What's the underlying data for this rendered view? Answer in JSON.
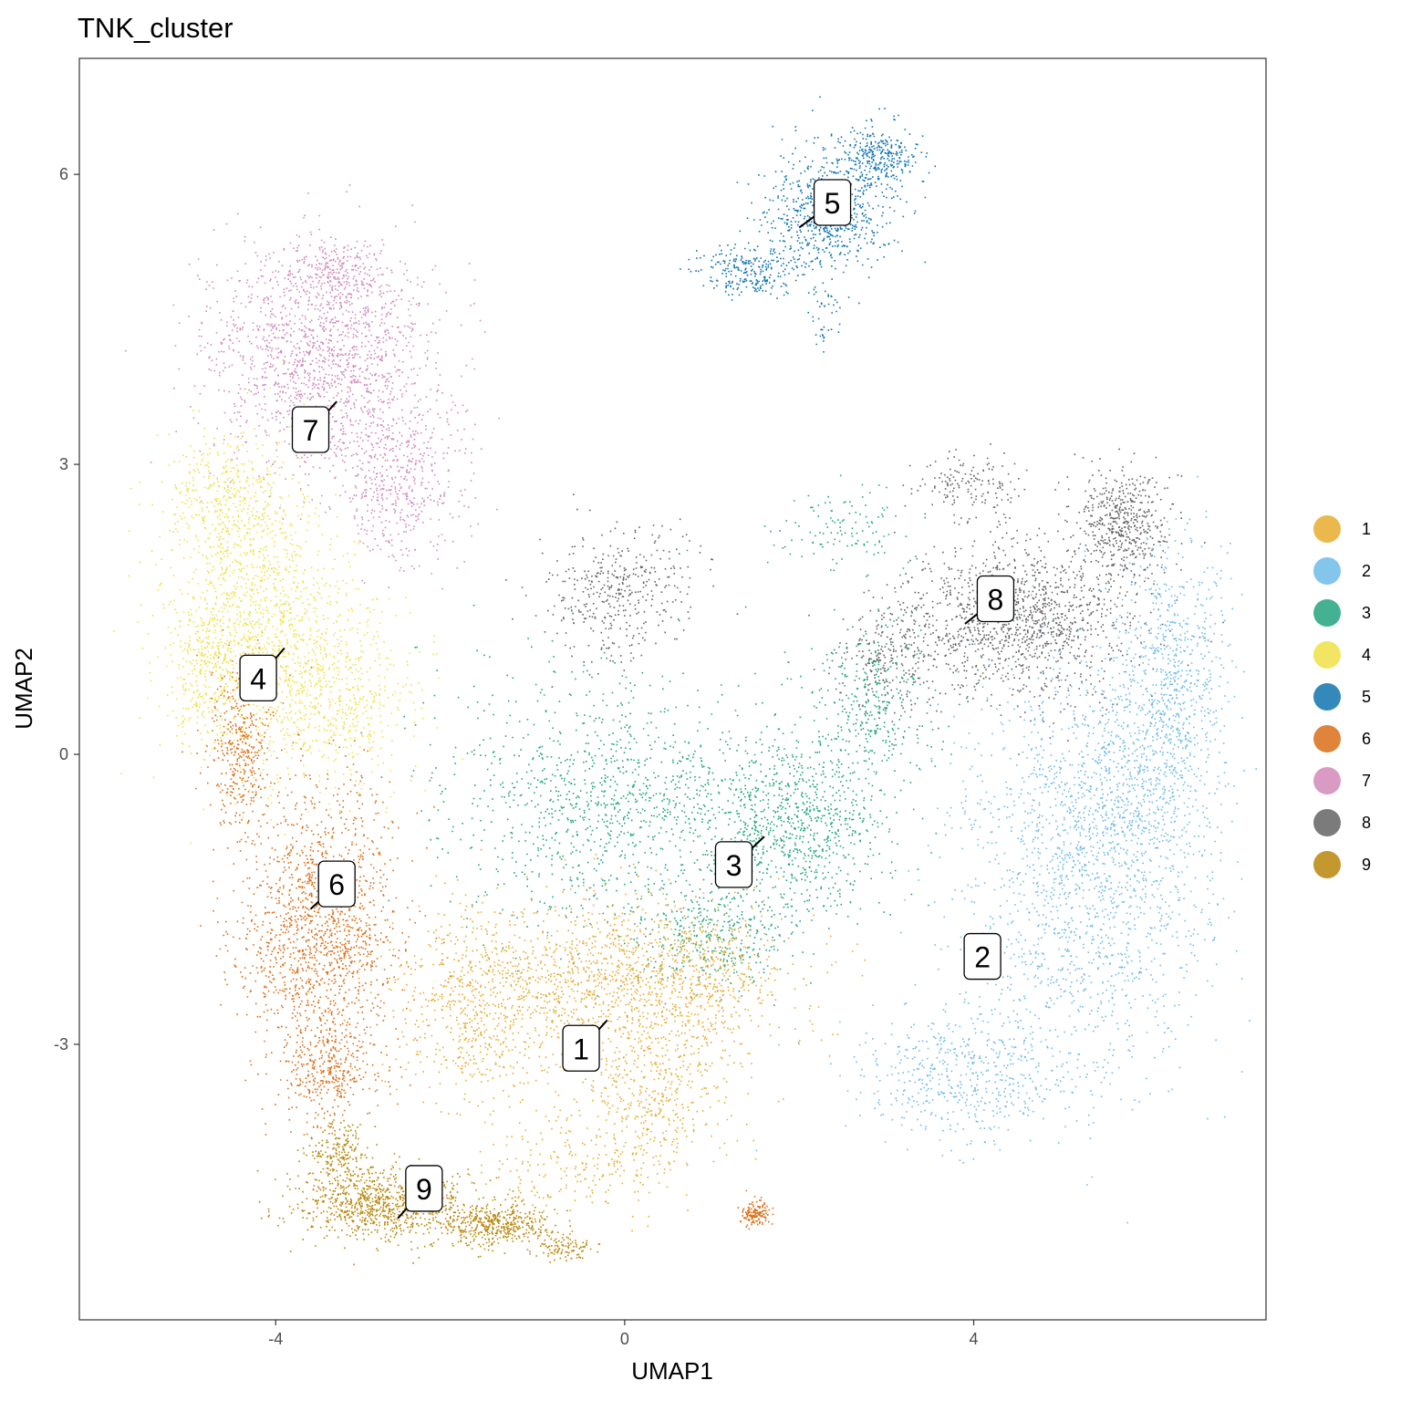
{
  "chart_data": {
    "type": "scatter",
    "title": "TNK_cluster",
    "xlabel": "UMAP1",
    "ylabel": "UMAP2",
    "xlim": [
      -6.25,
      7.35
    ],
    "ylim": [
      -5.85,
      7.2
    ],
    "xticks": [
      -4,
      0,
      4
    ],
    "yticks": [
      -3,
      0,
      3,
      6
    ],
    "grid": false,
    "legend_position": "right",
    "series": [
      {
        "name": "1",
        "color": "#E7AB2E",
        "label_point": [
          -0.5,
          -3.05
        ],
        "label_anchor": [
          -0.2,
          -2.75
        ],
        "blobs": [
          [
            -0.5,
            -2.4,
            1.9,
            0.85,
            1300
          ],
          [
            0.7,
            -2.3,
            1.0,
            0.7,
            500
          ],
          [
            0.3,
            -3.6,
            0.8,
            0.6,
            350
          ],
          [
            -1.7,
            -2.7,
            0.8,
            0.9,
            350
          ],
          [
            -0.6,
            -4.3,
            1.0,
            0.4,
            200
          ]
        ]
      },
      {
        "name": "2",
        "color": "#6FBBE8",
        "label_point": [
          4.1,
          -2.1
        ],
        "label_anchor": [
          4.1,
          -2.1
        ],
        "blobs": [
          [
            5.3,
            -1.2,
            1.3,
            1.9,
            1600
          ],
          [
            6.3,
            0.8,
            0.55,
            1.3,
            650
          ],
          [
            3.9,
            -3.3,
            1.2,
            0.6,
            550
          ],
          [
            5.8,
            -0.2,
            0.9,
            1.0,
            500
          ]
        ]
      },
      {
        "name": "3",
        "color": "#23A57F",
        "label_point": [
          1.25,
          -1.15
        ],
        "label_anchor": [
          1.6,
          -0.85
        ],
        "blobs": [
          [
            -0.2,
            -0.5,
            1.7,
            1.2,
            1100
          ],
          [
            1.9,
            -0.7,
            1.0,
            0.8,
            900
          ],
          [
            2.8,
            0.5,
            0.7,
            0.8,
            350
          ],
          [
            1.0,
            -1.9,
            0.8,
            0.5,
            350
          ],
          [
            2.5,
            2.3,
            0.7,
            0.4,
            120
          ]
        ]
      },
      {
        "name": "4",
        "color": "#F0E049",
        "label_point": [
          -4.2,
          0.78
        ],
        "label_anchor": [
          -3.9,
          1.1
        ],
        "blobs": [
          [
            -4.3,
            1.4,
            0.9,
            1.4,
            1300
          ],
          [
            -3.3,
            0.7,
            0.8,
            0.9,
            600
          ],
          [
            -4.6,
            2.7,
            0.6,
            0.5,
            300
          ],
          [
            -4.85,
            0.9,
            0.35,
            0.7,
            200
          ]
        ]
      },
      {
        "name": "5",
        "color": "#1074AF",
        "label_point": [
          2.38,
          5.7
        ],
        "label_anchor": [
          2.0,
          5.45
        ],
        "blobs": [
          [
            2.3,
            5.6,
            0.65,
            0.6,
            700
          ],
          [
            2.9,
            6.2,
            0.4,
            0.3,
            300
          ],
          [
            1.4,
            5.0,
            0.5,
            0.25,
            250
          ],
          [
            2.3,
            4.5,
            0.15,
            0.35,
            40
          ]
        ]
      },
      {
        "name": "6",
        "color": "#D96E17",
        "label_point": [
          -3.3,
          -1.35
        ],
        "label_anchor": [
          -3.6,
          -1.6
        ],
        "blobs": [
          [
            -3.5,
            -1.8,
            0.8,
            1.3,
            1500
          ],
          [
            -4.4,
            0.1,
            0.35,
            0.8,
            400
          ],
          [
            -3.4,
            -3.3,
            0.5,
            0.4,
            300
          ],
          [
            1.5,
            -4.75,
            0.15,
            0.12,
            140
          ]
        ]
      },
      {
        "name": "7",
        "color": "#D28AB8",
        "label_point": [
          -3.6,
          3.35
        ],
        "label_anchor": [
          -3.3,
          3.65
        ],
        "blobs": [
          [
            -3.5,
            4.1,
            1.2,
            1.0,
            1500
          ],
          [
            -2.6,
            2.8,
            0.7,
            0.8,
            500
          ],
          [
            -3.3,
            5.0,
            0.5,
            0.3,
            250
          ]
        ]
      },
      {
        "name": "8",
        "color": "#646464",
        "label_point": [
          4.25,
          1.6
        ],
        "label_anchor": [
          3.9,
          1.35
        ],
        "blobs": [
          [
            4.5,
            1.4,
            1.2,
            0.75,
            1300
          ],
          [
            5.7,
            2.4,
            0.45,
            0.5,
            500
          ],
          [
            -0.1,
            1.7,
            0.8,
            0.6,
            400
          ],
          [
            3.0,
            1.0,
            0.5,
            0.5,
            250
          ],
          [
            3.9,
            2.8,
            0.6,
            0.3,
            150
          ]
        ]
      },
      {
        "name": "9",
        "color": "#B8860B",
        "label_point": [
          -2.3,
          -4.5
        ],
        "label_anchor": [
          -2.6,
          -4.8
        ],
        "blobs": [
          [
            -2.8,
            -4.65,
            0.9,
            0.35,
            900
          ],
          [
            -1.5,
            -4.85,
            0.6,
            0.2,
            450
          ],
          [
            -3.3,
            -4.1,
            0.3,
            0.3,
            200
          ],
          [
            -0.7,
            -5.1,
            0.25,
            0.12,
            100
          ]
        ]
      }
    ]
  }
}
